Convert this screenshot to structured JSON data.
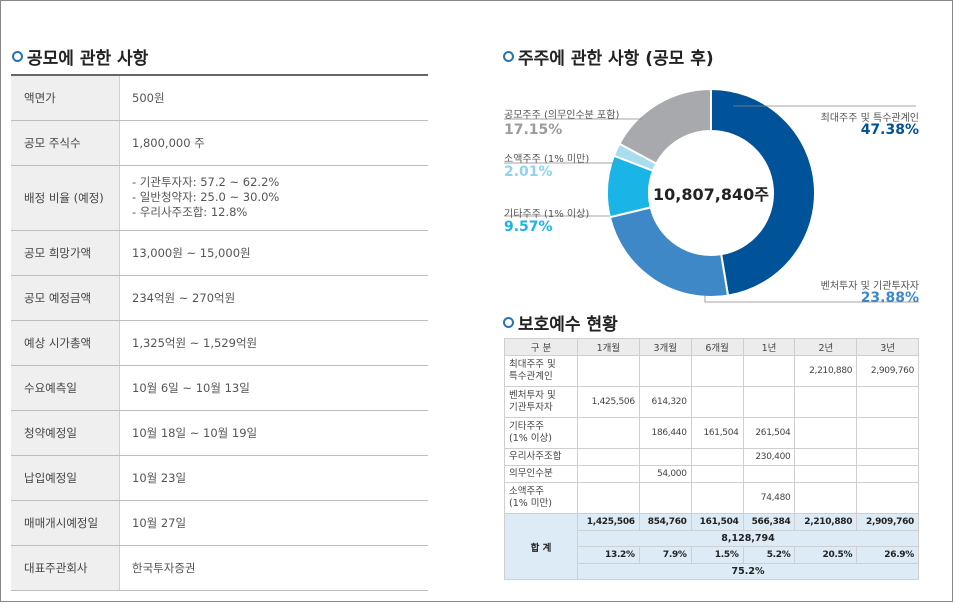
{
  "left": {
    "title": "공모에 관한 사항",
    "rows": [
      {
        "label": "액면가",
        "value": "500원"
      },
      {
        "label": "공모 주식수",
        "value": "1,800,000 주"
      },
      {
        "label": "배정 비율 (예정)",
        "lines": [
          "- 기관투자자: 57.2 ~ 62.2%",
          "- 일반청약자: 25.0 ~ 30.0%",
          "- 우리사주조합: 12.8%"
        ]
      },
      {
        "label": "공모 희망가액",
        "value": "13,000원 ~ 15,000원"
      },
      {
        "label": "공모 예정금액",
        "value": "234억원 ~ 270억원"
      },
      {
        "label": "예상 시가총액",
        "value": "1,325억원 ~ 1,529억원"
      },
      {
        "label": "수요예측일",
        "value": "10월 6일 ~ 10월 13일"
      },
      {
        "label": "청약예정일",
        "value": "10월 18일 ~ 10월 19일"
      },
      {
        "label": "납입예정일",
        "value": "10월 23일"
      },
      {
        "label": "매매개시예정일",
        "value": "10월 27일"
      },
      {
        "label": "대표주관회사",
        "value": "한국투자증권"
      }
    ]
  },
  "chart": {
    "title": "주주에 관한 사항 (공모 후)",
    "center": "10,807,840주",
    "legend_labels": {
      "major": "최대주주 및 특수관계인",
      "venture": "벤처투자 및 기관투자자",
      "other": "기타주주 (1% 이상)",
      "minor": "소액주주 (1% 미만)",
      "public": "공모주주 (의무인수분 포함)"
    },
    "legend_values": {
      "major": "47.38%",
      "venture": "23.88%",
      "other": "9.57%",
      "minor": "2.01%",
      "public": "17.15%"
    }
  },
  "chart_data": {
    "type": "pie",
    "title": "주주에 관한 사항 (공모 후)",
    "total_label": "10,807,840주",
    "categories": [
      "최대주주 및 특수관계인",
      "벤처투자 및 기관투자자",
      "기타주주 (1% 이상)",
      "소액주주 (1% 미만)",
      "공모주주 (의무인수분 포함)"
    ],
    "values": [
      47.38,
      23.88,
      9.57,
      2.01,
      17.15
    ],
    "colors": [
      "#005299",
      "#3f88c8",
      "#1bb4e6",
      "#a8dcef",
      "#a7a9ac"
    ]
  },
  "lockup": {
    "title": "보호예수 현황",
    "headers": [
      "구 분",
      "1개월",
      "3개월",
      "6개월",
      "1년",
      "2년",
      "3년"
    ],
    "rows": [
      {
        "cat": "최대주주 및\n특수관계인",
        "vals": [
          "",
          "",
          "",
          "",
          "2,210,880",
          "2,909,760"
        ]
      },
      {
        "cat": "벤처투자 및\n기관투자자",
        "vals": [
          "1,425,506",
          "614,320",
          "",
          "",
          "",
          ""
        ]
      },
      {
        "cat": "기타주주\n(1% 이상)",
        "vals": [
          "",
          "186,440",
          "161,504",
          "261,504",
          "",
          ""
        ]
      },
      {
        "cat": "우리사주조합",
        "vals": [
          "",
          "",
          "",
          "230,400",
          "",
          ""
        ]
      },
      {
        "cat": "의무인수분",
        "vals": [
          "",
          "54,000",
          "",
          "",
          "",
          ""
        ]
      },
      {
        "cat": "소액주주\n(1% 미만)",
        "vals": [
          "",
          "",
          "",
          "74,480",
          "",
          ""
        ]
      }
    ],
    "total_label": "합 계",
    "totals": [
      "1,425,506",
      "854,760",
      "161,504",
      "566,384",
      "2,210,880",
      "2,909,760"
    ],
    "grand_total": "8,128,794",
    "percents": [
      "13.2%",
      "7.9%",
      "1.5%",
      "5.2%",
      "20.5%",
      "26.9%"
    ],
    "grand_percent": "75.2%"
  }
}
